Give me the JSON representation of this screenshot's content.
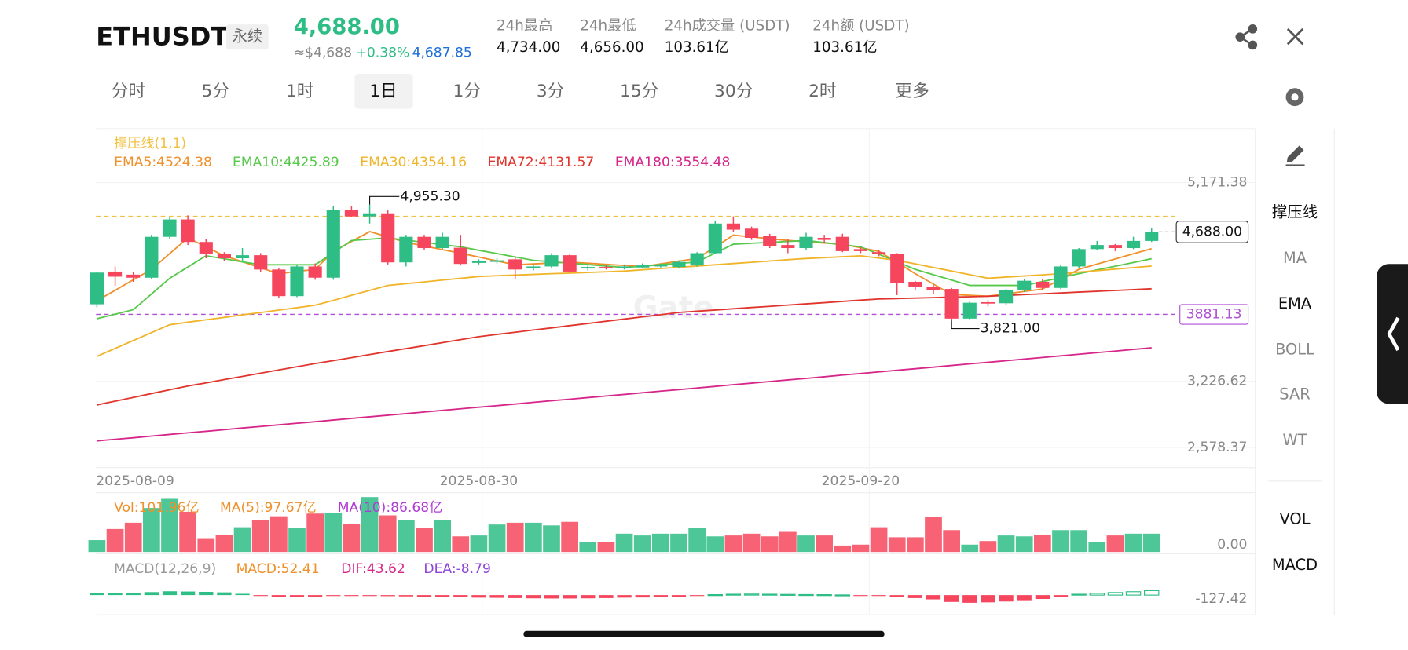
{
  "header": {
    "symbol": "ETHUSDT",
    "tag": "永续",
    "price": "4,688.00",
    "approx": "≈$4,688",
    "change": "+0.38%",
    "mark": "4,687.85",
    "stats": [
      {
        "label": "24h最高",
        "value": "4,734.00"
      },
      {
        "label": "24h最低",
        "value": "4,656.00"
      },
      {
        "label": "24h成交量 (USDT)",
        "value": "103.61亿"
      },
      {
        "label": "24h额 (USDT)",
        "value": "103.61亿"
      }
    ]
  },
  "tabs": [
    {
      "label": "分时",
      "active": false
    },
    {
      "label": "5分",
      "active": false
    },
    {
      "label": "1时",
      "active": false
    },
    {
      "label": "1日",
      "active": true
    },
    {
      "label": "1分",
      "active": false
    },
    {
      "label": "3分",
      "active": false
    },
    {
      "label": "15分",
      "active": false
    },
    {
      "label": "30分",
      "active": false
    },
    {
      "label": "2时",
      "active": false
    },
    {
      "label": "更多",
      "active": false
    }
  ],
  "sidebar": [
    {
      "label": "撑压线",
      "active": true
    },
    {
      "label": "MA",
      "active": false
    },
    {
      "label": "EMA",
      "active": true
    },
    {
      "label": "BOLL",
      "active": false
    },
    {
      "label": "SAR",
      "active": false
    },
    {
      "label": "WT",
      "active": false
    },
    {
      "label": "VOL",
      "active": true
    },
    {
      "label": "MACD",
      "active": true
    }
  ],
  "watermark": "Gate",
  "chart_data": [
    {
      "type": "candlestick",
      "indicator": "撑压线(1,1)",
      "up_color": "#2ebd85",
      "down_color": "#f6465d",
      "categories": [
        "2025-08-09",
        null,
        null,
        null,
        null,
        null,
        null,
        null,
        null,
        null,
        null,
        null,
        null,
        null,
        null,
        null,
        null,
        null,
        null,
        null,
        null,
        "2025-08-30",
        null,
        null,
        null,
        null,
        null,
        null,
        null,
        null,
        null,
        null,
        null,
        null,
        null,
        null,
        null,
        null,
        null,
        null,
        null,
        null,
        "2025-09-20",
        null,
        null,
        null,
        null,
        null,
        null,
        null,
        null,
        null,
        null,
        null,
        null,
        null,
        null,
        null,
        null
      ],
      "open": [
        3980,
        4300,
        4270,
        4240,
        4640,
        4810,
        4590,
        4470,
        4430,
        4460,
        4320,
        4060,
        4350,
        4240,
        4900,
        4840,
        4870,
        4390,
        4640,
        4530,
        4533,
        4385,
        4395,
        4420,
        4330,
        4350,
        4460,
        4330,
        4345,
        4335,
        4340,
        4350,
        4345,
        4360,
        4480,
        4770,
        4720,
        4650,
        4560,
        4530,
        4630,
        4640,
        4520,
        4490,
        4470,
        4200,
        4150,
        4130,
        3840,
        4000,
        3990,
        4120,
        4200,
        4140,
        4350,
        4520,
        4560,
        4530,
        4600
      ],
      "high": [
        4300,
        4350,
        4300,
        4660,
        4830,
        4850,
        4620,
        4490,
        4530,
        4480,
        4330,
        4370,
        4380,
        4940,
        4940,
        4955.3,
        4900,
        4660,
        4660,
        4680,
        4660,
        4420,
        4430,
        4440,
        4370,
        4480,
        4470,
        4360,
        4360,
        4370,
        4380,
        4380,
        4410,
        4490,
        4800,
        4840,
        4740,
        4670,
        4620,
        4680,
        4660,
        4670,
        4540,
        4510,
        4480,
        4210,
        4170,
        4140,
        4010,
        4020,
        4130,
        4230,
        4230,
        4370,
        4530,
        4600,
        4570,
        4640,
        4730
      ],
      "low": [
        3950,
        4160,
        4200,
        4230,
        4620,
        4560,
        4430,
        4400,
        4400,
        4300,
        4040,
        4050,
        4220,
        4220,
        4830,
        4770,
        4370,
        4350,
        4510,
        4520,
        4360,
        4370,
        4380,
        4230,
        4310,
        4330,
        4290,
        4310,
        4320,
        4320,
        4330,
        4340,
        4330,
        4350,
        4470,
        4690,
        4610,
        4530,
        4480,
        4510,
        4580,
        4490,
        4480,
        4450,
        4070,
        4120,
        4080,
        3821,
        3830,
        3960,
        3970,
        4100,
        4120,
        4130,
        4330,
        4510,
        4500,
        4520,
        4590
      ],
      "close": [
        4290,
        4250,
        4240,
        4640,
        4810,
        4590,
        4470,
        4430,
        4460,
        4320,
        4060,
        4350,
        4240,
        4900,
        4840,
        4870,
        4390,
        4640,
        4530,
        4640,
        4375,
        4400,
        4410,
        4320,
        4350,
        4460,
        4300,
        4345,
        4335,
        4350,
        4360,
        4365,
        4395,
        4480,
        4770,
        4710,
        4630,
        4550,
        4530,
        4640,
        4610,
        4500,
        4500,
        4470,
        4190,
        4150,
        4120,
        3840,
        3995,
        3990,
        4120,
        4210,
        4140,
        4350,
        4520,
        4560,
        4530,
        4600,
        4688
      ],
      "lines": [
        {
          "name": "EMA5:4524.38",
          "color": "#f0902a",
          "values": [
            4015,
            4117,
            4220,
            4322,
            4476,
            4630,
            4542,
            4454,
            4396,
            4337,
            4279,
            4301,
            4322,
            4498,
            4595,
            4691,
            4639,
            4586,
            4551,
            4515,
            4480,
            4442,
            4404,
            4366,
            4375,
            4384,
            4393,
            4382,
            4371,
            4360,
            4349,
            4375,
            4402,
            4428,
            4542,
            4656,
            4639,
            4621,
            4604,
            4592,
            4580,
            4568,
            4533,
            4498,
            4389,
            4279,
            4178,
            4076,
            4068,
            4059,
            4082,
            4106,
            4129,
            4226,
            4322,
            4373,
            4423,
            4474,
            4524.38
          ]
        },
        {
          "name": "EMA10:4425.89",
          "color": "#56c94a",
          "values": [
            3839,
            3883,
            3927,
            4081,
            4235,
            4345,
            4454,
            4425,
            4395,
            4366,
            4366,
            4366,
            4366,
            4485,
            4604,
            4617,
            4630,
            4608,
            4586,
            4564,
            4542,
            4509,
            4476,
            4443,
            4410,
            4396,
            4382,
            4368,
            4354,
            4340,
            4353,
            4367,
            4380,
            4393,
            4481,
            4568,
            4577,
            4586,
            4595,
            4604,
            4583,
            4563,
            4542,
            4469,
            4395,
            4322,
            4269,
            4217,
            4164,
            4164,
            4164,
            4164,
            4202,
            4241,
            4279,
            4316,
            4352,
            4389,
            4425.89
          ]
        },
        {
          "name": "EMA30:4354.16",
          "color": "#f0b429",
          "values": [
            3470,
            3548,
            3625,
            3703,
            3780,
            3804,
            3828,
            3852,
            3876,
            3899,
            3923,
            3947,
            3971,
            4019,
            4068,
            4116,
            4164,
            4182,
            4199,
            4217,
            4234,
            4252,
            4259,
            4265,
            4272,
            4279,
            4285,
            4292,
            4298,
            4305,
            4317,
            4330,
            4342,
            4354,
            4366,
            4379,
            4391,
            4403,
            4416,
            4428,
            4437,
            4445,
            4454,
            4432,
            4410,
            4375,
            4340,
            4305,
            4270,
            4235,
            4246,
            4257,
            4268,
            4279,
            4294,
            4309,
            4324,
            4339,
            4354.16
          ]
        },
        {
          "name": "EMA72:4131.57",
          "color": "#e0342c",
          "values": [
            2995,
            3032,
            3069,
            3106,
            3143,
            3180,
            3211,
            3243,
            3274,
            3306,
            3337,
            3369,
            3400,
            3429,
            3458,
            3488,
            3517,
            3546,
            3575,
            3604,
            3634,
            3663,
            3685,
            3706,
            3728,
            3749,
            3771,
            3792,
            3814,
            3835,
            3857,
            3878,
            3900,
            3912,
            3924,
            3936,
            3948,
            3960,
            3972,
            3984,
            3996,
            4008,
            4020,
            4032,
            4036,
            4041,
            4045,
            4050,
            4054,
            4059,
            4067,
            4075,
            4083,
            4091,
            4099,
            4107,
            4115,
            4123,
            4131.57
          ]
        },
        {
          "name": "EMA180:3554.48",
          "color": "#d6268a",
          "values": [
            2643,
            2659,
            2674,
            2690,
            2706,
            2722,
            2737,
            2753,
            2769,
            2784,
            2800,
            2816,
            2831,
            2847,
            2863,
            2879,
            2894,
            2910,
            2926,
            2941,
            2957,
            2973,
            2988,
            3004,
            3020,
            3036,
            3051,
            3067,
            3083,
            3098,
            3114,
            3130,
            3145,
            3161,
            3177,
            3193,
            3208,
            3224,
            3240,
            3255,
            3271,
            3287,
            3302,
            3318,
            3334,
            3350,
            3365,
            3381,
            3397,
            3412,
            3428,
            3444,
            3459,
            3475,
            3491,
            3507,
            3522,
            3538,
            3554.48
          ]
        }
      ],
      "levels": [
        {
          "value": 4841,
          "color": "#f0c040"
        },
        {
          "value": 3881.13,
          "color": "#b04fd6"
        }
      ],
      "last_price": {
        "value": 4688,
        "label": "4,688.00"
      },
      "max_label": {
        "value": 4955.3,
        "label": "4,955.30"
      },
      "min_label": {
        "value": 3821,
        "label": "3,821.00"
      },
      "ylim": [
        2390,
        5700
      ],
      "yticks": [
        {
          "value": 5171.38,
          "label": "5,171.38"
        },
        {
          "value": 3226.62,
          "label": "3,226.62"
        },
        {
          "value": 2578.37,
          "label": "2,578.37"
        }
      ],
      "grid": true
    },
    {
      "type": "bar",
      "legend": [
        {
          "name": "Vol:101.96亿",
          "color": "#f0902a"
        },
        {
          "name": "MA(5):97.67亿",
          "color": "#f0902a"
        },
        {
          "name": "MA(10):86.68亿",
          "color": "#b03ad6"
        }
      ],
      "values": [
        66,
        128,
        163,
        245,
        296,
        224,
        77,
        97,
        138,
        179,
        199,
        133,
        214,
        219,
        158,
        306,
        204,
        179,
        133,
        179,
        87,
        92,
        153,
        163,
        163,
        148,
        168,
        56,
        56,
        102,
        92,
        102,
        102,
        133,
        87,
        92,
        102,
        87,
        112,
        92,
        92,
        36,
        41,
        138,
        82,
        82,
        194,
        122,
        41,
        61,
        92,
        87,
        97,
        122,
        122,
        56,
        92,
        102,
        101.96
      ],
      "ylim": [
        0,
        330
      ],
      "yticks": [
        {
          "value": 0,
          "label": "0.00"
        }
      ]
    },
    {
      "type": "bar",
      "legend": [
        {
          "name": "MACD(12,26,9)",
          "color": "#999999"
        },
        {
          "name": "MACD:52.41",
          "color": "#f0902a"
        },
        {
          "name": "DIF:43.62",
          "color": "#d6268a"
        },
        {
          "name": "DEA:-8.79",
          "color": "#8e44d6"
        }
      ],
      "values": [
        20,
        22,
        28,
        35,
        45,
        42,
        38,
        32,
        15,
        -10,
        -25,
        -20,
        -18,
        -5,
        -5,
        -10,
        -12,
        -15,
        -18,
        -20,
        -25,
        -30,
        -32,
        -35,
        -38,
        -40,
        -40,
        -38,
        -35,
        -30,
        -28,
        -25,
        -20,
        -10,
        5,
        10,
        12,
        10,
        8,
        6,
        5,
        2,
        -5,
        -10,
        -25,
        -35,
        -50,
        -80,
        -90,
        -85,
        -75,
        -60,
        -45,
        -20,
        10,
        20,
        30,
        40,
        52.41
      ],
      "ylim": [
        -220,
        380
      ],
      "yticks": [
        -127.42
      ]
    }
  ]
}
